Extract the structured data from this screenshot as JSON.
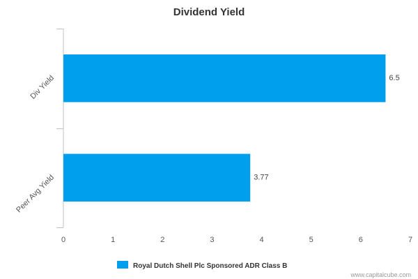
{
  "chart_data": {
    "type": "bar",
    "orientation": "horizontal",
    "title": "Dividend Yield",
    "categories": [
      "Div Yield",
      "Peer Avg Yield"
    ],
    "series": [
      {
        "name": "Royal Dutch Shell Plc Sponsored ADR Class B",
        "values": [
          6.5,
          3.77
        ]
      }
    ],
    "data_labels": [
      "6.5",
      "3.77"
    ],
    "xlim": [
      0,
      7
    ],
    "x_ticks": [
      "0",
      "1",
      "2",
      "3",
      "4",
      "5",
      "6",
      "7"
    ],
    "grid": false,
    "legend_position": "bottom-center",
    "colors": {
      "bar": "#009fee",
      "axis": "#c0c0c0"
    }
  },
  "footer": {
    "credit": "www.capitalcube.com"
  }
}
